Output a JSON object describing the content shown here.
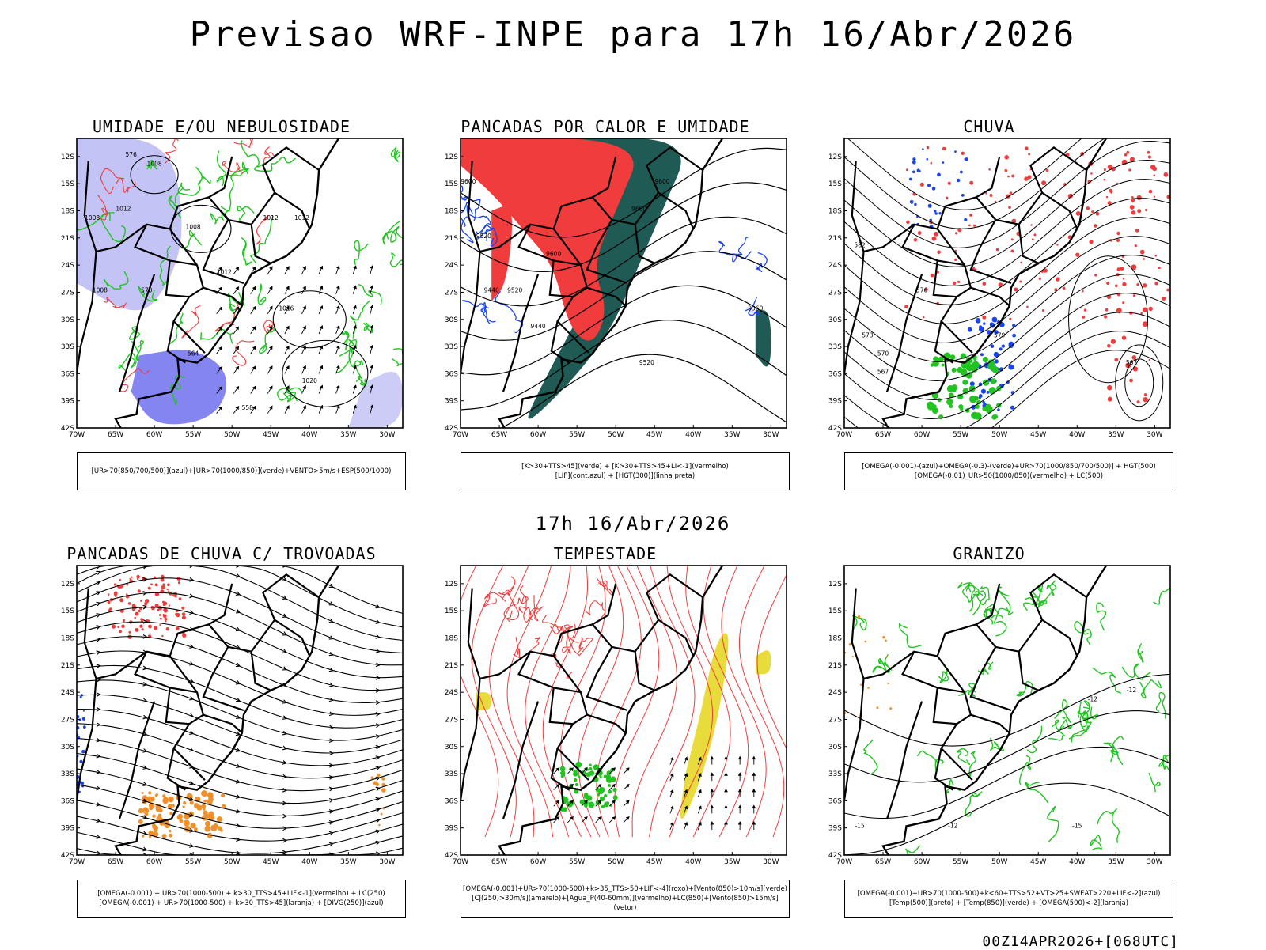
{
  "header": {
    "title": "Previsao WRF-INPE  para 17h 16/Abr/2026",
    "subtitle": "17h 16/Abr/2026",
    "footer": "00Z14APR2026+[068UTC]"
  },
  "axes": {
    "lat_labels": [
      "12S",
      "15S",
      "18S",
      "21S",
      "24S",
      "27S",
      "30S",
      "33S",
      "36S",
      "39S",
      "42S"
    ],
    "lon_labels": [
      "70W",
      "65W",
      "60W",
      "55W",
      "50W",
      "45W",
      "40W",
      "35W",
      "30W"
    ]
  },
  "colors": {
    "red": "#f03c3c",
    "green": "#22c422",
    "blue": "#1a44ee",
    "teal": "#1f5a55",
    "orange": "#f0902a",
    "yellow": "#e8dc3c",
    "lavender": "#aaaaf2"
  },
  "panels": [
    {
      "title": "UMIDADE E/OU NEBULOSIDADE",
      "legend": [
        "[UR>70(850/700/500)](azul)+[UR>70(1000/850)](verde)+VENTO>5m/s+ESP(500/1000)"
      ],
      "contour_labels": [
        "1008",
        "1008",
        "1012",
        "1008",
        "1008",
        "1012",
        "1012",
        "1012",
        "1016",
        "1020",
        "570",
        "564",
        "576",
        "558"
      ]
    },
    {
      "title": "PANCADAS POR CALOR E UMIDADE",
      "legend": [
        "[K>30+TTS>45](verde) + [K>30+TTS>45+LI<-1](vermelho)",
        "[LIF](cont.azul) + [HGT(300)](linha preta)"
      ],
      "contour_labels": [
        "9600",
        "9600",
        "9600",
        "9520",
        "9600",
        "9520",
        "9440",
        "9440",
        "9520",
        "9360"
      ]
    },
    {
      "title": "CHUVA",
      "legend": [
        "[OMEGA(-0.001)-(azul)+OMEGA(-0.3)-(verde)+UR>70(1000/850/700/500)] + HGT(500)",
        "[OMEGA(-0.01)_UR>50(1000/850)(vermelho) + LC(500)"
      ],
      "contour_labels": [
        "582",
        "576",
        "573",
        "570",
        "567",
        "579",
        "567"
      ]
    },
    {
      "title": "PANCADAS DE CHUVA C/ TROVOADAS",
      "legend": [
        "[OMEGA(-0.001) + UR>70(1000-500) + k>30_TTS>45+LIF<-1](vermelho) + LC(250)",
        "[OMEGA(-0.001) + UR>70(1000-500) + k>30_TTS>45](laranja) + [DIVG(250)](azul)"
      ],
      "contour_labels": []
    },
    {
      "title": "TEMPESTADE",
      "legend": [
        "[OMEGA(-0.001)+UR>70(1000-500)+k>35_TTS>50+LIF<-4](roxo)+[Vento(850)>10m/s](verde)",
        "[CJ(250)>30m/s](amarelo)+[Agua_P(40-60mm)](vermelho)+LC(850)+[Vento(850)>15m/s](vetor)"
      ],
      "contour_labels": []
    },
    {
      "title": "GRANIZO",
      "legend": [
        "[OMEGA(-0.001)+UR>70(1000-500)+k<60+TTS>52+VT>25+SWEAT>220+LIF<-2](azul)",
        "[Temp(500)](preto) + [Temp(850)](verde) + [OMEGA(500)<-2](laranja)"
      ],
      "contour_labels": [
        "-12",
        "-12",
        "-12",
        "-15",
        "-15"
      ]
    }
  ]
}
